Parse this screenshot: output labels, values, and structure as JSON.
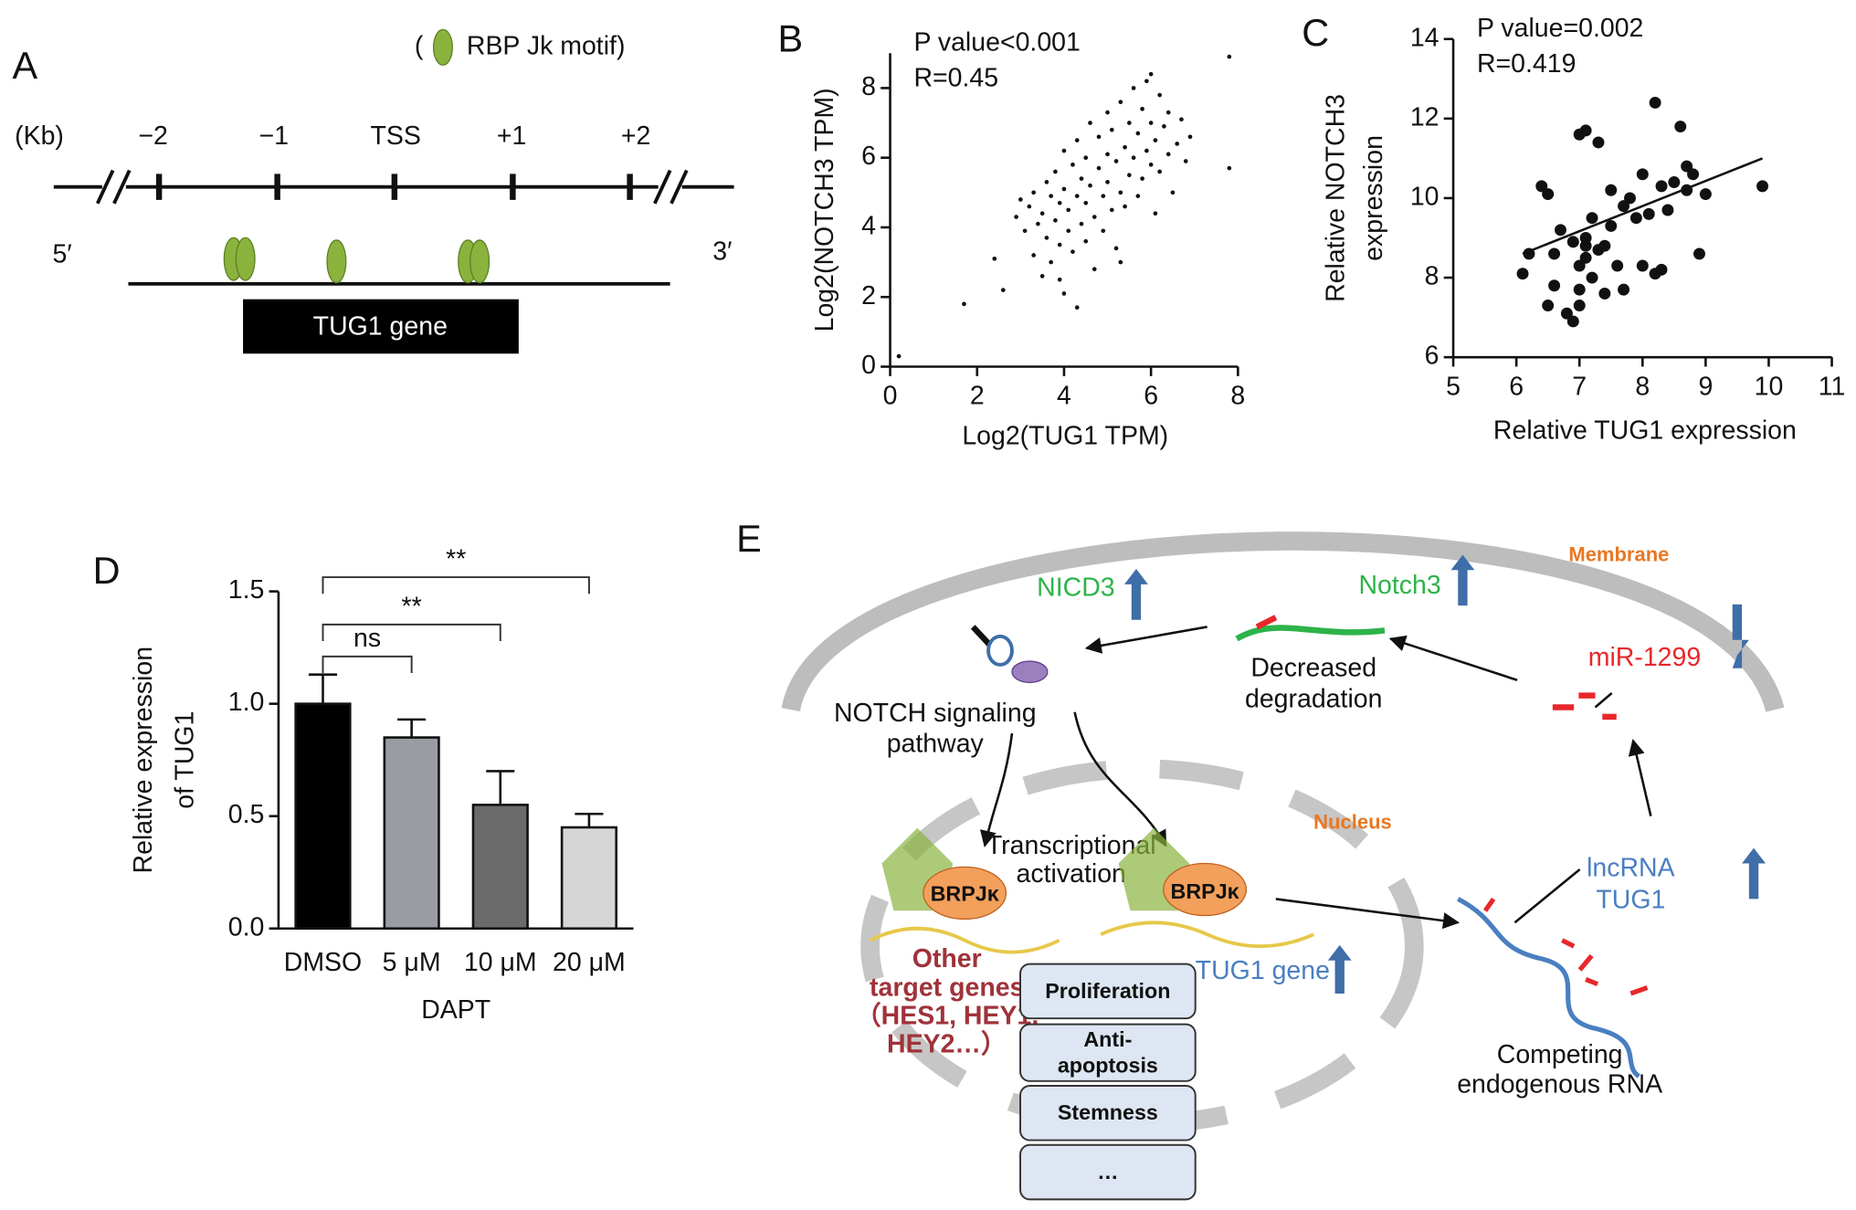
{
  "chart_data": [
    {
      "type": "scatter",
      "panel": "B",
      "annotations": [
        "P value<0.001",
        "R=0.45"
      ],
      "xlabel": "Log2(TUG1 TPM)",
      "ylabel": "Log2(NOTCH3 TPM)",
      "color": "#111111",
      "xlim": [
        0,
        8
      ],
      "ylim": [
        0,
        9
      ],
      "xticks": [
        0,
        2,
        4,
        6,
        8
      ],
      "yticks": [
        0,
        2,
        4,
        6,
        8
      ],
      "x": [
        2.9,
        3.0,
        3.1,
        3.2,
        3.3,
        3.3,
        3.4,
        3.5,
        3.5,
        3.6,
        3.6,
        3.7,
        3.7,
        3.8,
        3.8,
        3.9,
        3.9,
        4.0,
        4.0,
        4.0,
        4.1,
        4.1,
        4.2,
        4.2,
        4.3,
        4.3,
        4.4,
        4.4,
        4.5,
        4.5,
        4.5,
        4.6,
        4.6,
        4.7,
        4.7,
        4.8,
        4.8,
        4.9,
        4.9,
        5.0,
        5.0,
        5.0,
        5.1,
        5.1,
        5.2,
        5.2,
        5.3,
        5.3,
        5.4,
        5.4,
        5.5,
        5.5,
        5.6,
        5.6,
        5.7,
        5.7,
        5.8,
        5.8,
        5.9,
        5.9,
        6.0,
        6.0,
        6.1,
        6.1,
        6.2,
        6.2,
        6.3,
        6.4,
        6.4,
        6.5,
        6.6,
        6.7,
        6.8,
        6.9,
        2.4,
        2.6,
        1.7,
        0.2,
        7.8,
        7.8,
        4.3,
        3.9,
        6.0,
        5.3
      ],
      "values": [
        4.3,
        4.8,
        3.9,
        4.6,
        3.2,
        5.0,
        4.1,
        2.6,
        4.4,
        3.7,
        5.3,
        4.9,
        3.0,
        4.2,
        5.6,
        3.5,
        4.7,
        2.1,
        5.1,
        6.2,
        3.9,
        4.5,
        5.8,
        3.3,
        4.9,
        6.5,
        4.1,
        5.4,
        3.6,
        6.0,
        4.7,
        7.0,
        5.2,
        4.3,
        2.8,
        5.7,
        6.6,
        4.9,
        3.9,
        6.1,
        5.3,
        7.3,
        4.5,
        6.8,
        5.9,
        3.4,
        5.0,
        7.6,
        6.3,
        4.6,
        5.5,
        7.0,
        6.0,
        8.0,
        4.9,
        6.7,
        5.4,
        7.4,
        6.2,
        8.2,
        5.8,
        7.0,
        4.4,
        6.5,
        7.8,
        5.6,
        6.9,
        6.1,
        7.3,
        5.0,
        6.4,
        7.1,
        5.9,
        6.6,
        3.1,
        2.2,
        1.8,
        0.3,
        8.9,
        5.7,
        1.7,
        2.5,
        8.4,
        3.0
      ]
    },
    {
      "type": "scatter",
      "panel": "C",
      "annotations": [
        "P value=0.002",
        "R=0.419"
      ],
      "xlabel": "Relative TUG1 expression",
      "ylabel": [
        "Relative NOTCH3",
        "expression"
      ],
      "color": "#111111",
      "xlim": [
        5,
        11
      ],
      "ylim": [
        6,
        14
      ],
      "xticks": [
        5,
        6,
        7,
        8,
        9,
        10,
        11
      ],
      "yticks": [
        6,
        8,
        10,
        12,
        14
      ],
      "x": [
        6.1,
        6.2,
        6.4,
        6.5,
        6.5,
        6.6,
        6.6,
        6.7,
        6.8,
        6.9,
        6.9,
        7.0,
        7.0,
        7.0,
        7.1,
        7.1,
        7.1,
        7.2,
        7.2,
        7.3,
        7.3,
        7.4,
        7.4,
        7.5,
        7.5,
        7.6,
        7.7,
        7.7,
        7.8,
        7.9,
        8.0,
        8.0,
        8.1,
        8.2,
        8.2,
        8.3,
        8.4,
        8.5,
        8.6,
        8.7,
        8.7,
        8.8,
        8.9,
        9.0,
        9.9,
        7.0,
        7.1,
        8.3
      ],
      "values": [
        8.1,
        8.6,
        10.3,
        7.3,
        10.1,
        8.6,
        7.8,
        9.2,
        7.1,
        8.9,
        6.9,
        11.6,
        8.3,
        7.7,
        9.0,
        11.7,
        8.8,
        8.0,
        9.5,
        8.7,
        11.4,
        7.6,
        8.8,
        10.2,
        9.3,
        8.3,
        9.8,
        7.7,
        10.0,
        9.5,
        10.6,
        8.3,
        9.6,
        12.4,
        8.1,
        10.3,
        9.7,
        10.4,
        11.8,
        10.2,
        10.8,
        10.6,
        8.6,
        10.1,
        10.3,
        7.3,
        8.5,
        8.2
      ],
      "trendline": {
        "x": [
          6.1,
          9.9
        ],
        "y": [
          8.6,
          11.0
        ]
      }
    },
    {
      "type": "bar",
      "panel": "D",
      "xlabel": "DAPT",
      "ylabel": [
        "Relative expression",
        "of TUG1"
      ],
      "categories": [
        "DMSO",
        "5 μM",
        "10 μM",
        "20 μM"
      ],
      "values": [
        1.0,
        0.85,
        0.55,
        0.45
      ],
      "errors": [
        0.13,
        0.08,
        0.15,
        0.06
      ],
      "colors": [
        "#000000",
        "#9a9ca3",
        "#6b6b6b",
        "#d6d6d6"
      ],
      "ylim": [
        0,
        1.5
      ],
      "yticks": [
        {
          "value": 0,
          "label": "0.0"
        },
        0.5,
        {
          "value": 1,
          "label": "1.0"
        },
        1.5
      ],
      "brackets": [
        {
          "label": "ns",
          "from": 0,
          "to": 1
        },
        {
          "label": "**",
          "from": 0,
          "to": 2
        },
        {
          "label": "**",
          "from": 0,
          "to": 3
        }
      ]
    }
  ],
  "panel_a": {
    "panel": "A",
    "legend_open": "(",
    "legend": "RBP Jk motif)",
    "unit": "(Kb)",
    "ticks": [
      "−2",
      "−1",
      "TSS",
      "+1",
      "+2"
    ],
    "five": "5′",
    "three": "3′",
    "gene": "TUG1 gene"
  },
  "panel_e": {
    "panel": "E",
    "membrane": "Membrane",
    "nicd3": "NICD3",
    "notch3": "Notch3",
    "decreased": [
      "Decreased",
      "degradation"
    ],
    "mir": "miR-1299",
    "notch": [
      "NOTCH signaling",
      "pathway"
    ],
    "nucleus": "Nucleus",
    "transcription": [
      "Transcriptional",
      "activation"
    ],
    "brpj": [
      "BRPJκ",
      "BRPJκ"
    ],
    "other": [
      "Other",
      "target genes",
      "（HES1, HEY1,",
      "HEY2…）"
    ],
    "tug1gene": "TUG1 gene",
    "lncrna": [
      "lncRNA",
      "TUG1"
    ],
    "boxes": [
      [
        "Proliferation"
      ],
      [
        "Anti-",
        "apoptosis"
      ],
      [
        "Stemness"
      ],
      [
        "…"
      ]
    ],
    "cerna": [
      "Competing",
      "endogenous RNA"
    ]
  }
}
